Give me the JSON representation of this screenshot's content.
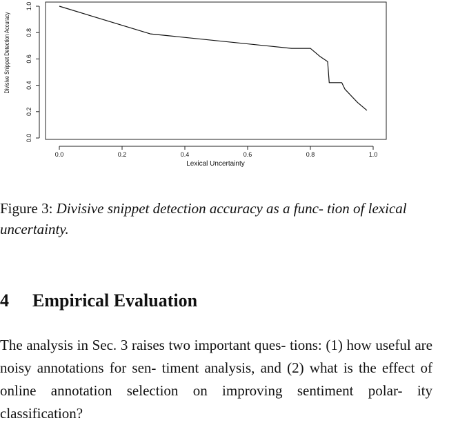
{
  "chart_data": {
    "type": "line",
    "xlabel": "Lexical Uncertainty",
    "ylabel": "Divisive Snippet Detection Accuracy",
    "xlim": [
      0.0,
      1.0
    ],
    "ylim": [
      0.0,
      1.0
    ],
    "x_ticks": [
      "0.0",
      "0.2",
      "0.4",
      "0.6",
      "0.8",
      "1.0"
    ],
    "y_ticks": [
      "0.0",
      "0.2",
      "0.4",
      "0.6",
      "0.8",
      "1.0"
    ],
    "grid": false,
    "series": [
      {
        "x": [
          0.0,
          0.29,
          0.74,
          0.8,
          0.83,
          0.855,
          0.86,
          0.9,
          0.91,
          0.95,
          0.98
        ],
        "y": [
          1.0,
          0.79,
          0.68,
          0.68,
          0.62,
          0.58,
          0.42,
          0.42,
          0.37,
          0.27,
          0.21
        ]
      }
    ]
  },
  "caption": {
    "label": "Figure 3:",
    "text": "Divisive snippet detection accuracy as a func- tion of lexical uncertainty."
  },
  "section": {
    "number": "4",
    "title": "Empirical Evaluation"
  },
  "paragraph": "The analysis in Sec. 3 raises two important ques- tions: (1) how useful are noisy annotations for sen- timent analysis, and (2) what is the effect of online annotation selection on improving sentiment polar- ity classification?"
}
